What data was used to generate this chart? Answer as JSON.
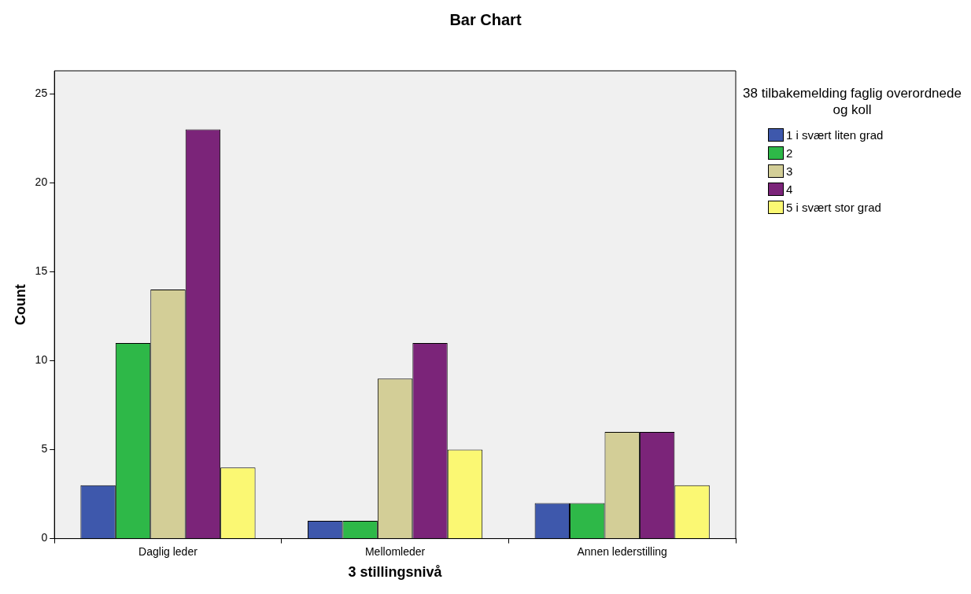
{
  "chart_data": {
    "type": "bar",
    "title": "Bar Chart",
    "xlabel": "3 stillingsnivå",
    "ylabel": "Count",
    "legend_title": "38 tilbakemelding faglig overordnede og koll",
    "categories": [
      "Daglig leder",
      "Mellomleder",
      "Annen lederstilling"
    ],
    "series": [
      {
        "name": "1 i svært liten grad",
        "color": "#3e58ac",
        "values": [
          3,
          1,
          2
        ]
      },
      {
        "name": "2",
        "color": "#2eb848",
        "values": [
          11,
          1,
          2
        ]
      },
      {
        "name": "3",
        "color": "#d3ce97",
        "values": [
          14,
          9,
          6
        ]
      },
      {
        "name": "4",
        "color": "#7b2479",
        "values": [
          23,
          11,
          6
        ]
      },
      {
        "name": "5 i svært stor grad",
        "color": "#fbf873",
        "values": [
          4,
          5,
          3
        ]
      }
    ],
    "ylim": [
      0,
      26.3
    ],
    "yticks": [
      0,
      5,
      10,
      15,
      20,
      25
    ],
    "grid": false,
    "legend": "top right"
  }
}
